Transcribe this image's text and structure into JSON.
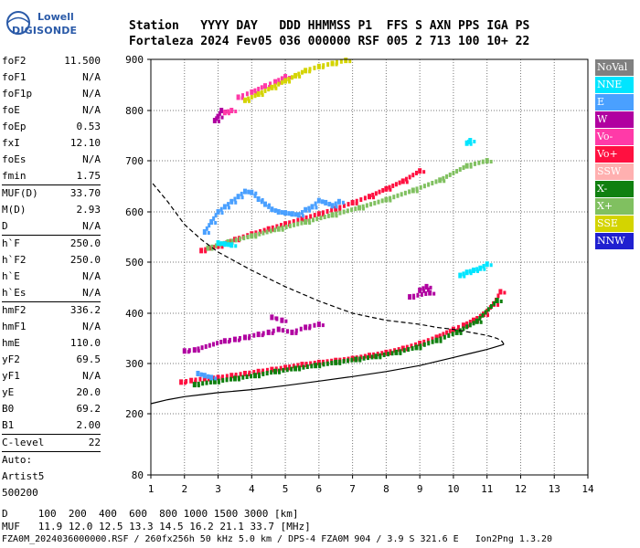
{
  "logo": {
    "line1": "Lowell",
    "line2": "DIGISONDE"
  },
  "header": {
    "line1": "Station   YYYY DAY   DDD HHMMSS P1  FFS S AXN PPS IGA PS",
    "line2": "Fortaleza 2024 Fev05 036 000000 RSF 005 2 713 100 10+ 22"
  },
  "params": [
    {
      "group": [
        {
          "k": "foF2",
          "v": "11.500"
        },
        {
          "k": "foF1",
          "v": "N/A"
        },
        {
          "k": "foF1p",
          "v": "N/A"
        },
        {
          "k": "foE",
          "v": "N/A"
        },
        {
          "k": "foEp",
          "v": "0.53"
        },
        {
          "k": "fxI",
          "v": "12.10"
        },
        {
          "k": "foEs",
          "v": "N/A"
        },
        {
          "k": "fmin",
          "v": "1.75"
        }
      ]
    },
    {
      "group": [
        {
          "k": "MUF(D)",
          "v": "33.70"
        },
        {
          "k": "M(D)",
          "v": "2.93"
        },
        {
          "k": "D",
          "v": "N/A"
        }
      ]
    },
    {
      "group": [
        {
          "k": "h`F",
          "v": "250.0"
        },
        {
          "k": "h`F2",
          "v": "250.0"
        },
        {
          "k": "h`E",
          "v": "N/A"
        },
        {
          "k": "h`Es",
          "v": "N/A"
        }
      ]
    },
    {
      "group": [
        {
          "k": "hmF2",
          "v": "336.2"
        },
        {
          "k": "hmF1",
          "v": "N/A"
        },
        {
          "k": "hmE",
          "v": "110.0"
        },
        {
          "k": "yF2",
          "v": "69.5"
        },
        {
          "k": "yF1",
          "v": "N/A"
        },
        {
          "k": "yE",
          "v": "20.0"
        },
        {
          "k": "B0",
          "v": "69.2"
        },
        {
          "k": "B1",
          "v": "2.00"
        }
      ]
    },
    {
      "group": [
        {
          "k": "C-level",
          "v": "22"
        }
      ]
    },
    {
      "group": [
        {
          "k": "Auto:",
          "v": ""
        },
        {
          "k": "Artist5",
          "v": ""
        },
        {
          "k": "500200",
          "v": ""
        }
      ]
    }
  ],
  "legend": [
    {
      "label": "NoVal",
      "color": "#808080"
    },
    {
      "label": "NNE",
      "color": "#00e5ff"
    },
    {
      "label": "E",
      "color": "#4aa0ff"
    },
    {
      "label": "W",
      "color": "#b000a0"
    },
    {
      "label": "Vo-",
      "color": "#ff3aa8"
    },
    {
      "label": "Vo+",
      "color": "#ff1040"
    },
    {
      "label": "SSW",
      "color": "#ffb0b0"
    },
    {
      "label": "X-",
      "color": "#108010"
    },
    {
      "label": "X+",
      "color": "#80c060"
    },
    {
      "label": "SSE",
      "color": "#d4d400"
    },
    {
      "label": "NNW",
      "color": "#2020d0"
    }
  ],
  "footer": {
    "d_row": "D     100  200  400  600  800 1000 1500 3000 [km]",
    "muf_row": "MUF   11.9 12.0 12.5 13.3 14.5 16.2 21.1 33.7 [MHz]",
    "info": "FZA0M_2024036000000.RSF / 260fx256h 50 kHz 5.0 km / DPS-4 FZA0M 904 / 3.9 S 321.6 E   Ion2Png 1.3.20"
  },
  "chart_data": {
    "type": "scatter",
    "xlim": [
      1,
      14
    ],
    "ylim": [
      80,
      900
    ],
    "xticks": [
      1,
      2,
      3,
      4,
      5,
      6,
      7,
      8,
      9,
      10,
      11,
      12,
      13,
      14
    ],
    "yticks": [
      80,
      200,
      300,
      400,
      500,
      600,
      700,
      800,
      900
    ],
    "x_unit": "MHz",
    "y_unit": "km",
    "grid": true,
    "profile": {
      "x": [
        1.0,
        1.5,
        2.0,
        2.5,
        3.0,
        4.0,
        5.0,
        6.0,
        7.0,
        8.0,
        9.0,
        9.5,
        10.0,
        10.5,
        11.0,
        11.3,
        11.5,
        11.45,
        11.3,
        11.0,
        10.5,
        10.0,
        9.5,
        9.0,
        8.0,
        7.0,
        6.0,
        5.0,
        4.0,
        3.0,
        2.5,
        2.0,
        1.5,
        1.0
      ],
      "y": [
        220,
        228,
        234,
        238,
        242,
        248,
        256,
        265,
        274,
        284,
        296,
        304,
        312,
        320,
        328,
        334,
        338,
        344,
        350,
        356,
        362,
        368,
        372,
        378,
        386,
        400,
        424,
        452,
        484,
        520,
        545,
        575,
        620,
        660
      ]
    },
    "series": [
      {
        "name": "Vo+",
        "color": "#ff1040",
        "x": [
          1.9,
          2.2,
          2.6,
          3.0,
          3.4,
          3.8,
          4.2,
          4.6,
          5.0,
          5.5,
          6.0,
          6.5,
          7.0,
          7.5,
          8.0,
          8.5,
          9.0,
          9.5,
          10.0,
          10.3,
          10.6,
          10.9,
          11.2,
          11.4
        ],
        "y": [
          263,
          266,
          270,
          272,
          276,
          280,
          284,
          288,
          292,
          298,
          302,
          306,
          310,
          316,
          322,
          330,
          340,
          352,
          368,
          376,
          386,
          398,
          418,
          442
        ]
      },
      {
        "name": "Vo+",
        "color": "#ff1040",
        "x": [
          2.5,
          3.0,
          3.5,
          4.0,
          4.5,
          5.0,
          5.5,
          6.0,
          6.5,
          7.0,
          7.5,
          8.0,
          8.5,
          9.0
        ],
        "y": [
          523,
          532,
          545,
          556,
          566,
          576,
          586,
          596,
          606,
          618,
          630,
          645,
          660,
          680
        ]
      },
      {
        "name": "X-",
        "color": "#108010",
        "x": [
          2.3,
          2.9,
          3.5,
          4.1,
          4.7,
          5.3,
          5.9,
          6.5,
          7.1,
          7.7,
          8.3,
          8.9,
          9.5,
          10.1,
          10.7,
          11.3
        ],
        "y": [
          258,
          264,
          270,
          276,
          284,
          290,
          296,
          302,
          308,
          314,
          322,
          332,
          346,
          362,
          384,
          425
        ]
      },
      {
        "name": "X+",
        "color": "#80c060",
        "x": [
          2.7,
          3.3,
          4.0,
          4.8,
          5.6,
          6.4,
          7.2,
          8.0,
          8.8,
          9.6,
          10.4,
          11.0
        ],
        "y": [
          528,
          540,
          552,
          566,
          580,
          594,
          608,
          624,
          642,
          662,
          690,
          700
        ]
      },
      {
        "name": "E",
        "color": "#4aa0ff",
        "x": [
          2.6,
          2.8,
          3.0,
          3.2,
          3.4,
          3.6,
          3.8,
          4.0,
          4.2,
          4.4,
          4.6,
          4.8,
          5.0,
          5.2,
          5.4,
          5.6,
          5.8,
          6.0,
          6.2,
          6.4,
          6.6,
          2.4,
          2.6,
          2.8
        ],
        "y": [
          560,
          580,
          600,
          610,
          620,
          630,
          640,
          638,
          625,
          615,
          605,
          600,
          598,
          596,
          594,
          604,
          610,
          622,
          618,
          612,
          620,
          280,
          276,
          272
        ]
      },
      {
        "name": "W",
        "color": "#b000a0",
        "x": [
          2.0,
          2.3,
          3.2,
          3.5,
          3.8,
          4.2,
          4.5,
          4.8,
          5.2,
          5.6,
          6.0,
          4.6,
          4.9,
          2.9,
          3.0,
          3.1,
          9.0,
          9.2,
          9.3,
          8.7
        ],
        "y": [
          325,
          327,
          345,
          348,
          352,
          358,
          362,
          368,
          362,
          372,
          378,
          392,
          386,
          780,
          788,
          800,
          445,
          452,
          440,
          432
        ]
      },
      {
        "name": "Vo-",
        "color": "#ff3aa8",
        "x": [
          3.6,
          4.0,
          4.4,
          4.7,
          5.0,
          3.2,
          3.4
        ],
        "y": [
          826,
          836,
          848,
          856,
          866,
          796,
          800
        ]
      },
      {
        "name": "SSE",
        "color": "#d4d400",
        "x": [
          3.8,
          4.2,
          4.6,
          5.0,
          5.3,
          5.6,
          6.0,
          6.4,
          6.8
        ],
        "y": [
          820,
          832,
          845,
          858,
          868,
          878,
          886,
          892,
          898
        ]
      },
      {
        "name": "NNE",
        "color": "#00e5ff",
        "x": [
          10.2,
          10.4,
          10.6,
          10.8,
          11.0,
          3.0,
          3.2,
          3.4,
          10.4,
          10.5
        ],
        "y": [
          474,
          480,
          484,
          488,
          496,
          538,
          536,
          534,
          735,
          740
        ]
      }
    ]
  }
}
